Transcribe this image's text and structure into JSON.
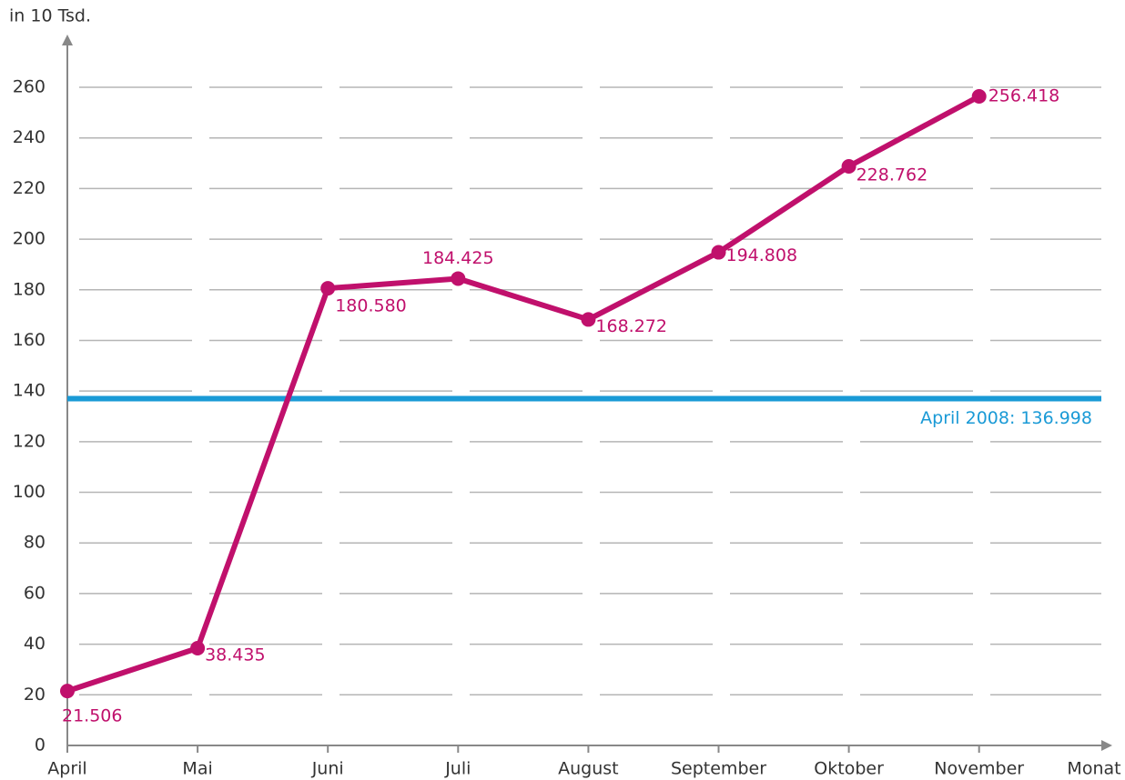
{
  "chart_data": {
    "type": "line",
    "ylabel": "in 10 Tsd.",
    "xlabel": "Monat",
    "categories": [
      "April",
      "Mai",
      "Juni",
      "Juli",
      "August",
      "September",
      "Oktober",
      "November"
    ],
    "series": [
      {
        "color": "#c0106c",
        "values": [
          21.506,
          38.435,
          180.58,
          184.425,
          168.272,
          194.808,
          228.762,
          256.418
        ],
        "value_labels": [
          "21.506",
          "38.435",
          "180.580",
          "184.425",
          "168.272",
          "194.808",
          "228.762",
          "256.418"
        ]
      }
    ],
    "reference_line": {
      "value": 136.998,
      "label": "April 2008: 136.998",
      "color": "#1a9ad6"
    },
    "ylim": [
      0,
      260
    ],
    "yticks": [
      0,
      20,
      40,
      60,
      80,
      100,
      120,
      140,
      160,
      180,
      200,
      220,
      240,
      260
    ],
    "grid": true
  }
}
